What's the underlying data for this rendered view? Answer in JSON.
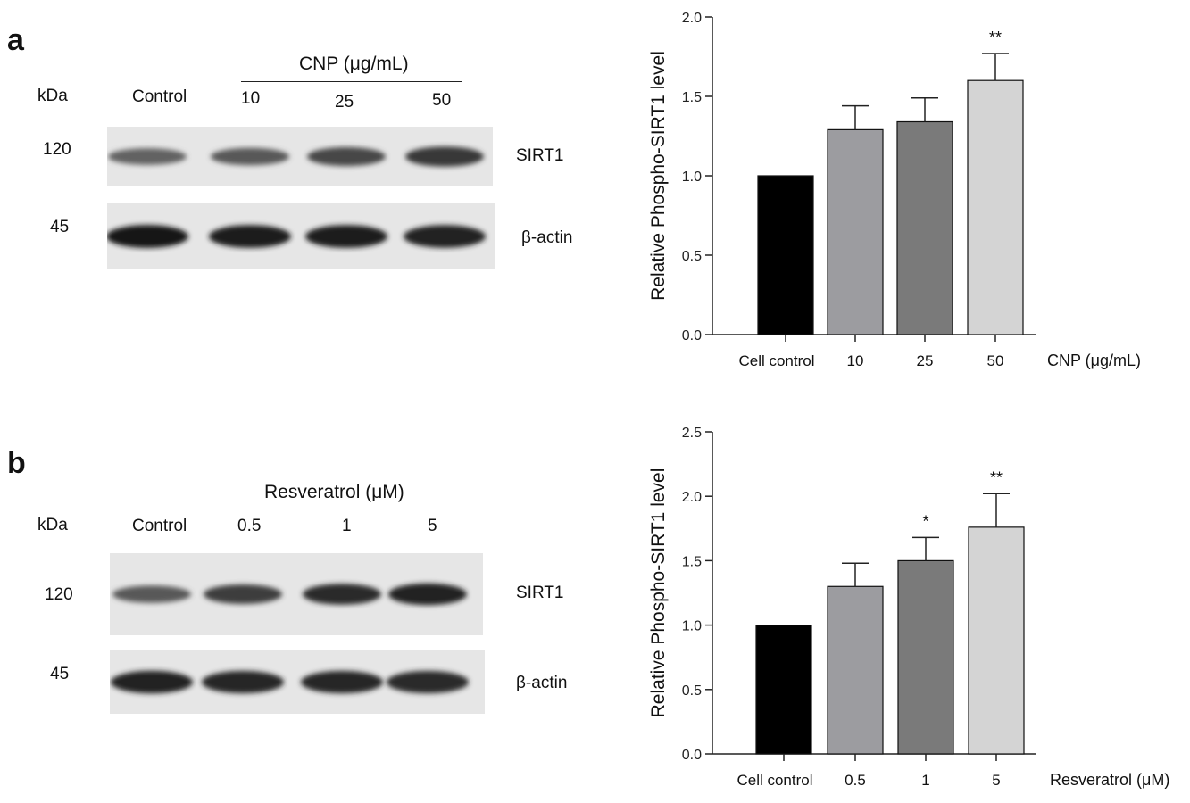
{
  "panels": [
    {
      "letter": "a",
      "kda_label": "kDa",
      "treatment_header": "CNP (μg/mL)",
      "lane_labels": [
        "Control",
        "10",
        "25",
        "50"
      ],
      "bands": [
        {
          "marker": "120",
          "label": "SIRT1",
          "intensities": [
            0.55,
            0.6,
            0.7,
            0.78
          ]
        },
        {
          "marker": "45",
          "label": "β-actin",
          "intensities": [
            0.95,
            0.93,
            0.93,
            0.9
          ]
        }
      ]
    },
    {
      "letter": "b",
      "kda_label": "kDa",
      "treatment_header": "Resveratrol (μM)",
      "lane_labels": [
        "Control",
        "0.5",
        "1",
        "5"
      ],
      "bands": [
        {
          "marker": "120",
          "label": "SIRT1",
          "intensities": [
            0.6,
            0.75,
            0.85,
            0.9
          ]
        },
        {
          "marker": "45",
          "label": "β-actin",
          "intensities": [
            0.9,
            0.88,
            0.88,
            0.86
          ]
        }
      ]
    }
  ],
  "chart_data": [
    {
      "type": "bar",
      "categories": [
        "Cell control",
        "10",
        "25",
        "50"
      ],
      "values": [
        1.0,
        1.29,
        1.34,
        1.6
      ],
      "errors": [
        0,
        0.15,
        0.15,
        0.17
      ],
      "significance": [
        "",
        "",
        "",
        "**"
      ],
      "bar_colors": [
        "#000000",
        "#9c9ca0",
        "#7a7a7a",
        "#d4d4d4"
      ],
      "ylabel": "Relative Phospho-SIRT1 level",
      "xlabel": "CNP (μg/mL)",
      "ylim": [
        0,
        2.0
      ],
      "yticks": [
        0.0,
        0.5,
        1.0,
        1.5,
        2.0
      ],
      "ytick_labels": [
        "0.0",
        "0.5",
        "1.0",
        "1.5",
        "2.0"
      ]
    },
    {
      "type": "bar",
      "categories": [
        "Cell control",
        "0.5",
        "1",
        "5"
      ],
      "values": [
        1.0,
        1.3,
        1.5,
        1.76
      ],
      "errors": [
        0,
        0.18,
        0.18,
        0.26
      ],
      "significance": [
        "",
        "",
        "*",
        "**"
      ],
      "bar_colors": [
        "#000000",
        "#9c9ca0",
        "#7a7a7a",
        "#d4d4d4"
      ],
      "ylabel": "Relative Phospho-SIRT1 level",
      "xlabel": "Resveratrol (μM)",
      "ylim": [
        0,
        2.5
      ],
      "yticks": [
        0.0,
        0.5,
        1.0,
        1.5,
        2.0,
        2.5
      ],
      "ytick_labels": [
        "0.0",
        "0.5",
        "1.0",
        "1.5",
        "2.0",
        "2.5"
      ]
    }
  ]
}
